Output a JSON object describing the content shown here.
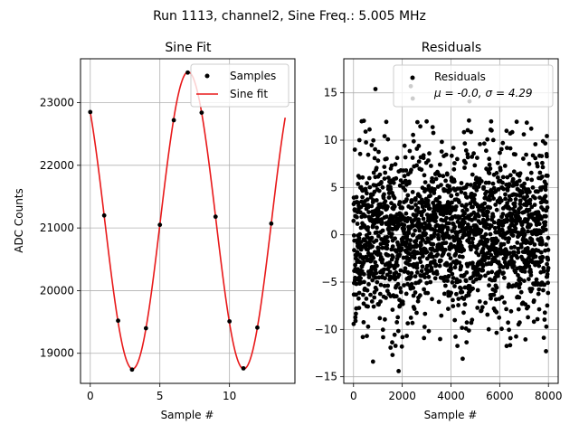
{
  "figure": {
    "suptitle": "Run 1113, channel2, Sine Freq.: 5.005 MHz"
  },
  "chart_data": [
    {
      "type": "line",
      "title": "Sine Fit",
      "xlabel": "Sample #",
      "ylabel": "ADC Counts",
      "xlim": [
        -0.7,
        14.7
      ],
      "ylim": [
        18520,
        23700
      ],
      "xticks": [
        0,
        5,
        10
      ],
      "yticks": [
        19000,
        20000,
        21000,
        22000,
        23000
      ],
      "grid": true,
      "legend_position": "top-right",
      "series": [
        {
          "name": "Samples",
          "style": "points",
          "color": "#000000",
          "x": [
            0,
            1,
            2,
            3,
            4,
            5,
            6,
            7,
            8,
            9,
            10,
            11,
            12,
            13
          ],
          "y": [
            22850,
            21200,
            19520,
            18740,
            19400,
            21050,
            22720,
            23480,
            22840,
            21180,
            19510,
            18760,
            19410,
            21070
          ]
        },
        {
          "name": "Sine fit",
          "style": "line",
          "color": "#e8191a",
          "model": {
            "offset": 21120,
            "amplitude": 2370,
            "period_samples": 7.992,
            "phase_rad": 0.7536,
            "x_range": [
              0,
              14
            ]
          }
        }
      ]
    },
    {
      "type": "scatter",
      "title": "Residuals",
      "xlabel": "Sample #",
      "ylabel": "",
      "xlim": [
        -400,
        8400
      ],
      "ylim": [
        -15.7,
        18.6
      ],
      "xticks": [
        0,
        2000,
        4000,
        6000,
        8000
      ],
      "yticks": [
        -15,
        -10,
        -5,
        0,
        5,
        10,
        15
      ],
      "grid": true,
      "legend_position": "top-right",
      "series": [
        {
          "name": "Residuals",
          "style": "points",
          "color": "#000000",
          "n_points": 8000,
          "mu": -0.0,
          "sigma": 4.29,
          "highlights": [
            {
              "x": 900,
              "y": 15.4
            },
            {
              "x": 2350,
              "y": 15.7
            },
            {
              "x": 2430,
              "y": 14.4
            },
            {
              "x": 4760,
              "y": 14.1
            },
            {
              "x": 1850,
              "y": -14.4
            },
            {
              "x": 800,
              "y": -13.4
            },
            {
              "x": 4480,
              "y": -13.1
            },
            {
              "x": 1600,
              "y": -12.7
            },
            {
              "x": 7900,
              "y": -12.3
            }
          ]
        }
      ],
      "legend_label_mu": "μ = -0.0,",
      "legend_label_sigma": "σ = 4.29"
    }
  ]
}
